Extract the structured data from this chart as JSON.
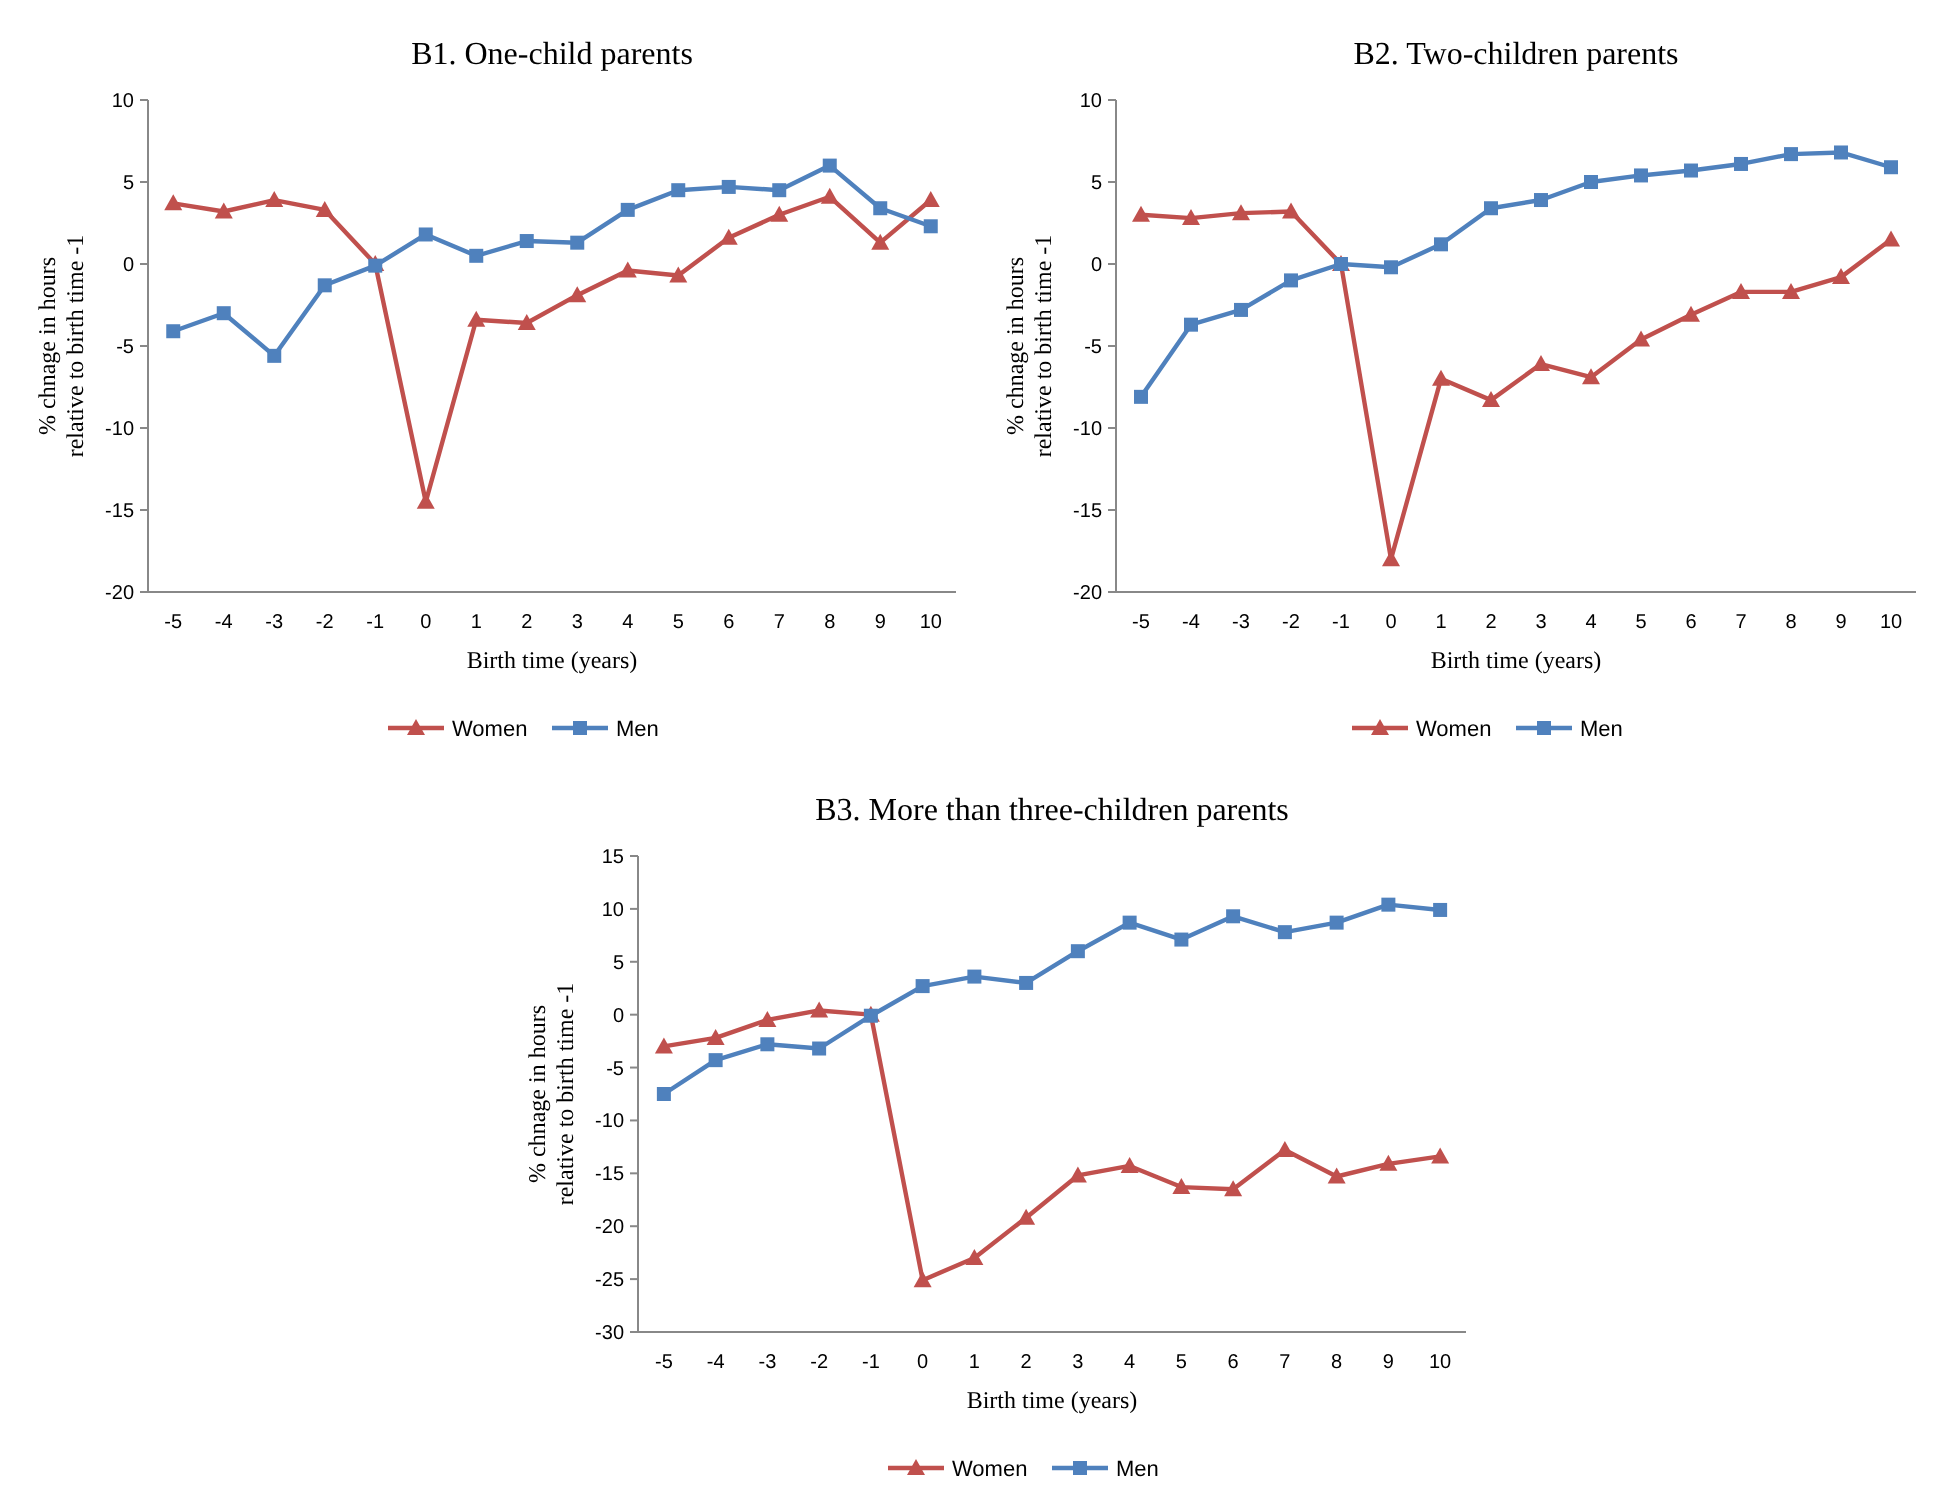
{
  "chart_data": [
    {
      "type": "line",
      "title": "B1. One-child parents",
      "xlabel": "Birth time (years)",
      "ylabel": "% chnage in hours relative to birth time -1",
      "categories": [
        "-5",
        "-4",
        "-3",
        "-2",
        "-1",
        "0",
        "1",
        "2",
        "3",
        "4",
        "5",
        "6",
        "7",
        "8",
        "9",
        "10"
      ],
      "ylim": [
        -20,
        10
      ],
      "yticks": [
        -20,
        -15,
        -10,
        -5,
        0,
        5,
        10
      ],
      "grid": false,
      "legend": "bottom",
      "series": [
        {
          "name": "Women",
          "color": "#c0504d",
          "marker": "triangle",
          "values": [
            3.7,
            3.2,
            3.9,
            3.3,
            0,
            -14.5,
            -3.4,
            -3.6,
            -1.9,
            -0.4,
            -0.7,
            1.6,
            3.0,
            4.1,
            1.3,
            3.9
          ]
        },
        {
          "name": "Men",
          "color": "#4f81bd",
          "marker": "square",
          "values": [
            -4.1,
            -3.0,
            -5.6,
            -1.3,
            -0.1,
            1.8,
            0.5,
            1.4,
            1.3,
            3.3,
            4.5,
            4.7,
            4.5,
            6.0,
            3.4,
            2.3
          ]
        }
      ]
    },
    {
      "type": "line",
      "title": "B2. Two-children parents",
      "xlabel": "Birth time (years)",
      "ylabel": "% chnage in hours relative to birth time -1",
      "categories": [
        "-5",
        "-4",
        "-3",
        "-2",
        "-1",
        "0",
        "1",
        "2",
        "3",
        "4",
        "5",
        "6",
        "7",
        "8",
        "9",
        "10"
      ],
      "ylim": [
        -20,
        10
      ],
      "yticks": [
        -20,
        -15,
        -10,
        -5,
        0,
        5,
        10
      ],
      "grid": false,
      "legend": "bottom",
      "series": [
        {
          "name": "Women",
          "color": "#c0504d",
          "marker": "triangle",
          "values": [
            3.0,
            2.8,
            3.1,
            3.2,
            0,
            -18.0,
            -7.0,
            -8.3,
            -6.1,
            -6.9,
            -4.6,
            -3.1,
            -1.7,
            -1.7,
            -0.8,
            1.5
          ]
        },
        {
          "name": "Men",
          "color": "#4f81bd",
          "marker": "square",
          "values": [
            -8.1,
            -3.7,
            -2.8,
            -1.0,
            0,
            -0.2,
            1.2,
            3.4,
            3.9,
            5.0,
            5.4,
            5.7,
            6.1,
            6.7,
            6.8,
            5.9
          ]
        }
      ]
    },
    {
      "type": "line",
      "title": "B3. More than three-children parents",
      "xlabel": "Birth time (years)",
      "ylabel": "% chnage in hours relative to birth time -1",
      "categories": [
        "-5",
        "-4",
        "-3",
        "-2",
        "-1",
        "0",
        "1",
        "2",
        "3",
        "4",
        "5",
        "6",
        "7",
        "8",
        "9",
        "10"
      ],
      "ylim": [
        -30,
        15
      ],
      "yticks": [
        -30,
        -25,
        -20,
        -15,
        -10,
        -5,
        0,
        5,
        10,
        15
      ],
      "grid": false,
      "legend": "bottom",
      "series": [
        {
          "name": "Women",
          "color": "#c0504d",
          "marker": "triangle",
          "values": [
            -3.0,
            -2.2,
            -0.5,
            0.4,
            0,
            -25.1,
            -23.0,
            -19.2,
            -15.2,
            -14.3,
            -16.3,
            -16.5,
            -12.8,
            -15.3,
            -14.1,
            -13.4
          ]
        },
        {
          "name": "Men",
          "color": "#4f81bd",
          "marker": "square",
          "values": [
            -7.5,
            -4.3,
            -2.8,
            -3.2,
            -0.1,
            2.7,
            3.6,
            3.0,
            6.0,
            8.7,
            7.1,
            9.3,
            7.8,
            8.7,
            10.4,
            9.9
          ]
        }
      ]
    }
  ]
}
